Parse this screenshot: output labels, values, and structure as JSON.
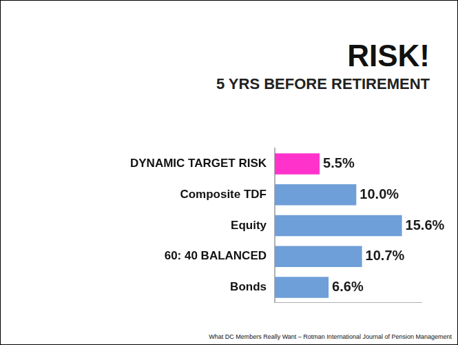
{
  "chart_data": {
    "type": "bar",
    "title": "RISK!",
    "subtitle": "5 YRS BEFORE RETIREMENT",
    "annotations": [
      "What DC Members Really Want – Rotman International Journal of Pension Management"
    ],
    "orientation": "horizontal",
    "categories": [
      "DYNAMIC TARGET RISK",
      "Composite TDF",
      "Equity",
      "60: 40 BALANCED",
      "Bonds"
    ],
    "values": [
      5.5,
      10.0,
      15.6,
      10.7,
      6.6
    ],
    "value_labels": [
      "5.5%",
      "10.0%",
      "15.6%",
      "10.7%",
      "6.6%"
    ],
    "colors": [
      "#ff33cc",
      "#6f9fd8",
      "#6f9fd8",
      "#6f9fd8",
      "#6f9fd8"
    ],
    "xlim": [
      0,
      18
    ],
    "grid": false,
    "data_labels": true,
    "tick_labels": "y"
  }
}
